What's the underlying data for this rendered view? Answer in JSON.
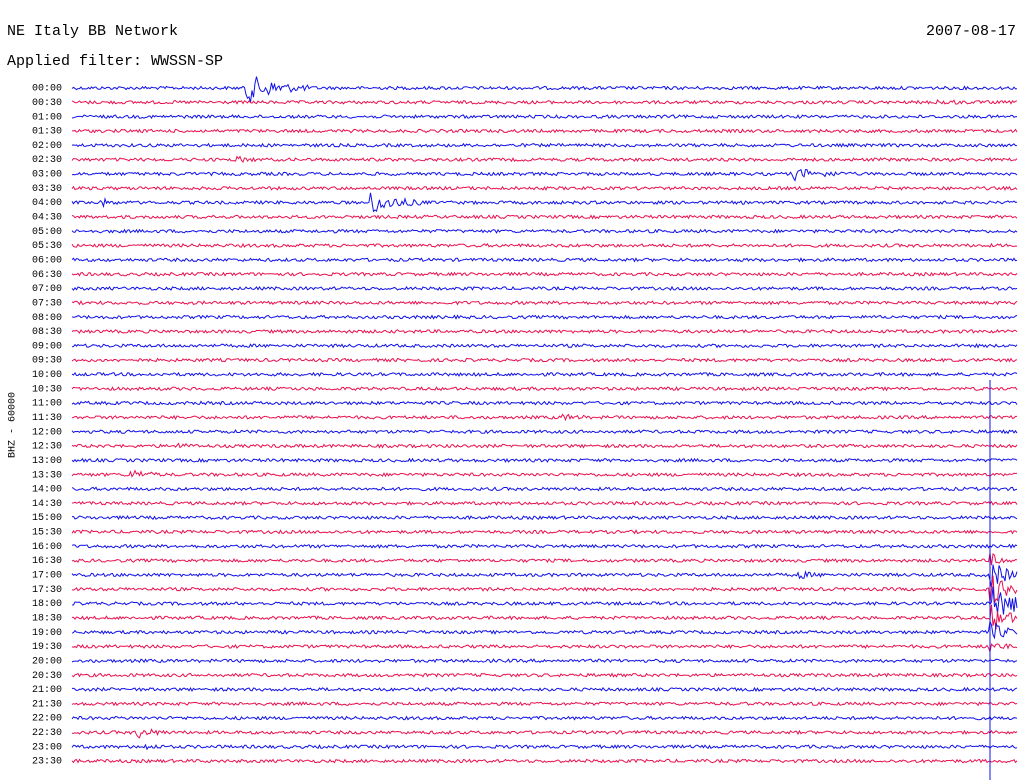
{
  "header": {
    "title": "NE Italy BB Network",
    "date": "2007-08-17",
    "filter": "Applied filter: WWSSN-SP"
  },
  "side_label": "BHZ - 60000",
  "rows": [
    "00:00",
    "00:30",
    "01:00",
    "01:30",
    "02:00",
    "02:30",
    "03:00",
    "03:30",
    "04:00",
    "04:30",
    "05:00",
    "05:30",
    "06:00",
    "06:30",
    "07:00",
    "07:30",
    "08:00",
    "08:30",
    "09:00",
    "09:30",
    "10:00",
    "10:30",
    "11:00",
    "11:30",
    "12:00",
    "12:30",
    "13:00",
    "13:30",
    "14:00",
    "14:30",
    "15:00",
    "15:30",
    "16:00",
    "16:30",
    "17:00",
    "17:30",
    "18:00",
    "18:30",
    "19:00",
    "19:30",
    "20:00",
    "20:30",
    "21:00",
    "21:30",
    "22:00",
    "22:30",
    "23:00",
    "23:30"
  ]
}
